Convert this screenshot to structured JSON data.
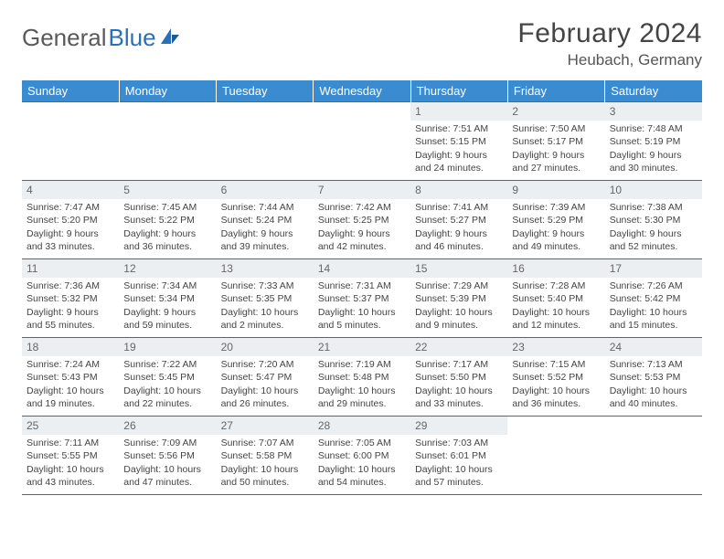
{
  "brand": {
    "part1": "General",
    "part2": "Blue"
  },
  "title": "February 2024",
  "location": "Heubach, Germany",
  "colors": {
    "header_bg": "#3b8bd0",
    "border": "#2a70b8",
    "daynum_bg": "#eceff1",
    "text": "#444444"
  },
  "weekdays": [
    "Sunday",
    "Monday",
    "Tuesday",
    "Wednesday",
    "Thursday",
    "Friday",
    "Saturday"
  ],
  "weeks": [
    [
      null,
      null,
      null,
      null,
      {
        "n": "1",
        "sr": "Sunrise: 7:51 AM",
        "ss": "Sunset: 5:15 PM",
        "d1": "Daylight: 9 hours",
        "d2": "and 24 minutes."
      },
      {
        "n": "2",
        "sr": "Sunrise: 7:50 AM",
        "ss": "Sunset: 5:17 PM",
        "d1": "Daylight: 9 hours",
        "d2": "and 27 minutes."
      },
      {
        "n": "3",
        "sr": "Sunrise: 7:48 AM",
        "ss": "Sunset: 5:19 PM",
        "d1": "Daylight: 9 hours",
        "d2": "and 30 minutes."
      }
    ],
    [
      {
        "n": "4",
        "sr": "Sunrise: 7:47 AM",
        "ss": "Sunset: 5:20 PM",
        "d1": "Daylight: 9 hours",
        "d2": "and 33 minutes."
      },
      {
        "n": "5",
        "sr": "Sunrise: 7:45 AM",
        "ss": "Sunset: 5:22 PM",
        "d1": "Daylight: 9 hours",
        "d2": "and 36 minutes."
      },
      {
        "n": "6",
        "sr": "Sunrise: 7:44 AM",
        "ss": "Sunset: 5:24 PM",
        "d1": "Daylight: 9 hours",
        "d2": "and 39 minutes."
      },
      {
        "n": "7",
        "sr": "Sunrise: 7:42 AM",
        "ss": "Sunset: 5:25 PM",
        "d1": "Daylight: 9 hours",
        "d2": "and 42 minutes."
      },
      {
        "n": "8",
        "sr": "Sunrise: 7:41 AM",
        "ss": "Sunset: 5:27 PM",
        "d1": "Daylight: 9 hours",
        "d2": "and 46 minutes."
      },
      {
        "n": "9",
        "sr": "Sunrise: 7:39 AM",
        "ss": "Sunset: 5:29 PM",
        "d1": "Daylight: 9 hours",
        "d2": "and 49 minutes."
      },
      {
        "n": "10",
        "sr": "Sunrise: 7:38 AM",
        "ss": "Sunset: 5:30 PM",
        "d1": "Daylight: 9 hours",
        "d2": "and 52 minutes."
      }
    ],
    [
      {
        "n": "11",
        "sr": "Sunrise: 7:36 AM",
        "ss": "Sunset: 5:32 PM",
        "d1": "Daylight: 9 hours",
        "d2": "and 55 minutes."
      },
      {
        "n": "12",
        "sr": "Sunrise: 7:34 AM",
        "ss": "Sunset: 5:34 PM",
        "d1": "Daylight: 9 hours",
        "d2": "and 59 minutes."
      },
      {
        "n": "13",
        "sr": "Sunrise: 7:33 AM",
        "ss": "Sunset: 5:35 PM",
        "d1": "Daylight: 10 hours",
        "d2": "and 2 minutes."
      },
      {
        "n": "14",
        "sr": "Sunrise: 7:31 AM",
        "ss": "Sunset: 5:37 PM",
        "d1": "Daylight: 10 hours",
        "d2": "and 5 minutes."
      },
      {
        "n": "15",
        "sr": "Sunrise: 7:29 AM",
        "ss": "Sunset: 5:39 PM",
        "d1": "Daylight: 10 hours",
        "d2": "and 9 minutes."
      },
      {
        "n": "16",
        "sr": "Sunrise: 7:28 AM",
        "ss": "Sunset: 5:40 PM",
        "d1": "Daylight: 10 hours",
        "d2": "and 12 minutes."
      },
      {
        "n": "17",
        "sr": "Sunrise: 7:26 AM",
        "ss": "Sunset: 5:42 PM",
        "d1": "Daylight: 10 hours",
        "d2": "and 15 minutes."
      }
    ],
    [
      {
        "n": "18",
        "sr": "Sunrise: 7:24 AM",
        "ss": "Sunset: 5:43 PM",
        "d1": "Daylight: 10 hours",
        "d2": "and 19 minutes."
      },
      {
        "n": "19",
        "sr": "Sunrise: 7:22 AM",
        "ss": "Sunset: 5:45 PM",
        "d1": "Daylight: 10 hours",
        "d2": "and 22 minutes."
      },
      {
        "n": "20",
        "sr": "Sunrise: 7:20 AM",
        "ss": "Sunset: 5:47 PM",
        "d1": "Daylight: 10 hours",
        "d2": "and 26 minutes."
      },
      {
        "n": "21",
        "sr": "Sunrise: 7:19 AM",
        "ss": "Sunset: 5:48 PM",
        "d1": "Daylight: 10 hours",
        "d2": "and 29 minutes."
      },
      {
        "n": "22",
        "sr": "Sunrise: 7:17 AM",
        "ss": "Sunset: 5:50 PM",
        "d1": "Daylight: 10 hours",
        "d2": "and 33 minutes."
      },
      {
        "n": "23",
        "sr": "Sunrise: 7:15 AM",
        "ss": "Sunset: 5:52 PM",
        "d1": "Daylight: 10 hours",
        "d2": "and 36 minutes."
      },
      {
        "n": "24",
        "sr": "Sunrise: 7:13 AM",
        "ss": "Sunset: 5:53 PM",
        "d1": "Daylight: 10 hours",
        "d2": "and 40 minutes."
      }
    ],
    [
      {
        "n": "25",
        "sr": "Sunrise: 7:11 AM",
        "ss": "Sunset: 5:55 PM",
        "d1": "Daylight: 10 hours",
        "d2": "and 43 minutes."
      },
      {
        "n": "26",
        "sr": "Sunrise: 7:09 AM",
        "ss": "Sunset: 5:56 PM",
        "d1": "Daylight: 10 hours",
        "d2": "and 47 minutes."
      },
      {
        "n": "27",
        "sr": "Sunrise: 7:07 AM",
        "ss": "Sunset: 5:58 PM",
        "d1": "Daylight: 10 hours",
        "d2": "and 50 minutes."
      },
      {
        "n": "28",
        "sr": "Sunrise: 7:05 AM",
        "ss": "Sunset: 6:00 PM",
        "d1": "Daylight: 10 hours",
        "d2": "and 54 minutes."
      },
      {
        "n": "29",
        "sr": "Sunrise: 7:03 AM",
        "ss": "Sunset: 6:01 PM",
        "d1": "Daylight: 10 hours",
        "d2": "and 57 minutes."
      },
      null,
      null
    ]
  ]
}
